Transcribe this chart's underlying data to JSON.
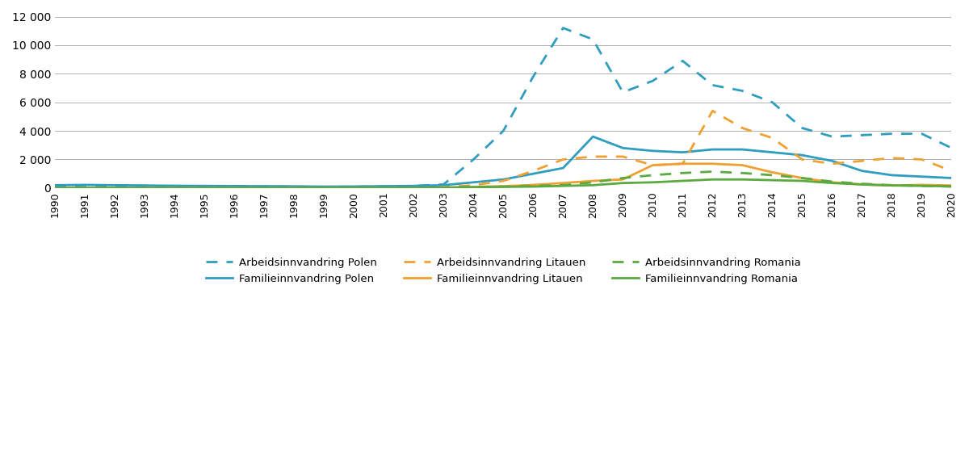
{
  "years": [
    1990,
    1991,
    1992,
    1993,
    1994,
    1995,
    1996,
    1997,
    1998,
    1999,
    2000,
    2001,
    2002,
    2003,
    2004,
    2005,
    2006,
    2007,
    2008,
    2009,
    2010,
    2011,
    2012,
    2013,
    2014,
    2015,
    2016,
    2017,
    2018,
    2019,
    2020
  ],
  "arbeidsinnvandring_polen": [
    150,
    200,
    180,
    150,
    120,
    110,
    100,
    100,
    90,
    80,
    90,
    110,
    150,
    250,
    2000,
    4000,
    7800,
    11200,
    10400,
    6700,
    7500,
    8900,
    7200,
    6800,
    6000,
    4200,
    3600,
    3700,
    3800,
    3800,
    2800
  ],
  "familieinnvandring_polen": [
    200,
    220,
    200,
    180,
    160,
    150,
    140,
    130,
    120,
    100,
    110,
    130,
    150,
    200,
    400,
    600,
    1000,
    1400,
    3600,
    2800,
    2600,
    2500,
    2700,
    2700,
    2500,
    2300,
    1900,
    1200,
    900,
    800,
    700
  ],
  "arbeidsinnvandring_litauen": [
    10,
    10,
    10,
    10,
    10,
    10,
    10,
    10,
    10,
    10,
    10,
    10,
    20,
    50,
    200,
    500,
    1200,
    2000,
    2200,
    2200,
    1600,
    1700,
    5400,
    4200,
    3500,
    2000,
    1700,
    1900,
    2100,
    2000,
    1200
  ],
  "familieinnvandring_litauen": [
    10,
    10,
    10,
    10,
    10,
    10,
    10,
    10,
    10,
    10,
    10,
    10,
    20,
    30,
    80,
    130,
    220,
    350,
    500,
    600,
    1600,
    1700,
    1700,
    1600,
    1100,
    700,
    400,
    250,
    180,
    220,
    180
  ],
  "arbeidsinnvandring_romania": [
    10,
    10,
    10,
    10,
    10,
    10,
    10,
    10,
    10,
    10,
    10,
    10,
    20,
    30,
    80,
    100,
    150,
    200,
    400,
    700,
    900,
    1050,
    1150,
    1050,
    900,
    700,
    450,
    300,
    200,
    150,
    100
  ],
  "familieinnvandring_romania": [
    10,
    10,
    10,
    10,
    10,
    10,
    10,
    10,
    10,
    10,
    10,
    10,
    20,
    30,
    60,
    80,
    100,
    150,
    200,
    350,
    400,
    500,
    600,
    600,
    550,
    500,
    350,
    250,
    180,
    150,
    120
  ],
  "color_blue": "#2e9dbf",
  "color_orange": "#f0a030",
  "color_green": "#5aaa40",
  "ylim": [
    0,
    12000
  ],
  "yticks": [
    0,
    2000,
    4000,
    6000,
    8000,
    10000,
    12000
  ],
  "xlim_left": 1990,
  "xlim_right": 2020
}
